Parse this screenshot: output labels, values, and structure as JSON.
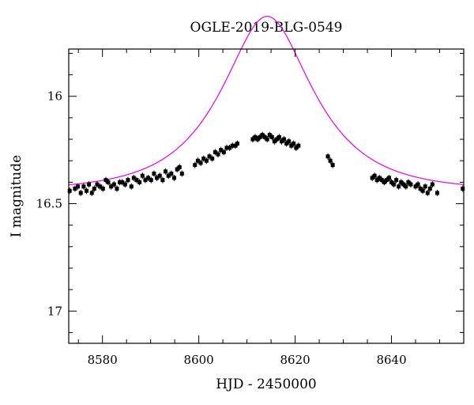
{
  "chart_data": {
    "type": "scatter",
    "title": "OGLE-2019-BLG-0549",
    "xlabel": "HJD - 2450000",
    "ylabel": "I magnitude",
    "xlim": [
      8573,
      8655
    ],
    "ylim": [
      17.15,
      15.78
    ],
    "y_inverted": true,
    "x_ticks_major": [
      8580,
      8600,
      8620,
      8640
    ],
    "x_tick_labels": [
      "8580",
      "8600",
      "8620",
      "8640"
    ],
    "y_ticks_major": [
      16,
      16.5,
      17
    ],
    "y_tick_labels": [
      "16",
      "16.5",
      "17"
    ],
    "grid": false,
    "model_color": "#e600e6",
    "point_color": "#000000",
    "model": {
      "t0": 8614.2,
      "u0": 0.52,
      "tE": 16.0,
      "I_base": 16.44
    },
    "series": [
      {
        "values": [
          [
            8573.2,
            16.44
          ],
          [
            8574.3,
            16.43
          ],
          [
            8574.9,
            16.42
          ],
          [
            8575.5,
            16.45
          ],
          [
            8576.1,
            16.42
          ],
          [
            8576.7,
            16.44
          ],
          [
            8577.2,
            16.41
          ],
          [
            8577.8,
            16.45
          ],
          [
            8578.3,
            16.43
          ],
          [
            8578.9,
            16.41
          ],
          [
            8579.5,
            16.42
          ],
          [
            8580.1,
            16.43
          ],
          [
            8580.7,
            16.39
          ],
          [
            8581.2,
            16.4
          ],
          [
            8581.8,
            16.42
          ],
          [
            8582.4,
            16.41
          ],
          [
            8583.0,
            16.43
          ],
          [
            8583.6,
            16.4
          ],
          [
            8584.1,
            16.4
          ],
          [
            8584.7,
            16.41
          ],
          [
            8585.3,
            16.39
          ],
          [
            8586.0,
            16.42
          ],
          [
            8586.5,
            16.38
          ],
          [
            8587.1,
            16.39
          ],
          [
            8587.7,
            16.4
          ],
          [
            8588.3,
            16.37
          ],
          [
            8588.9,
            16.39
          ],
          [
            8589.5,
            16.38
          ],
          [
            8590.1,
            16.39
          ],
          [
            8590.7,
            16.36
          ],
          [
            8591.3,
            16.38
          ],
          [
            8591.9,
            16.37
          ],
          [
            8592.5,
            16.39
          ],
          [
            8593.1,
            16.35
          ],
          [
            8593.7,
            16.37
          ],
          [
            8594.3,
            16.36
          ],
          [
            8594.9,
            16.38
          ],
          [
            8595.5,
            16.34
          ],
          [
            8596.0,
            16.33
          ],
          [
            8596.5,
            16.36
          ],
          [
            8599.2,
            16.32
          ],
          [
            8599.8,
            16.3
          ],
          [
            8600.4,
            16.31
          ],
          [
            8601.0,
            16.29
          ],
          [
            8601.6,
            16.3
          ],
          [
            8602.2,
            16.28
          ],
          [
            8602.8,
            16.29
          ],
          [
            8603.4,
            16.26
          ],
          [
            8604.0,
            16.27
          ],
          [
            8604.6,
            16.25
          ],
          [
            8605.2,
            16.26
          ],
          [
            8605.8,
            16.24
          ],
          [
            8606.4,
            16.24
          ],
          [
            8607.0,
            16.23
          ],
          [
            8607.6,
            16.23
          ],
          [
            8608.0,
            16.22
          ],
          [
            8611.2,
            16.2
          ],
          [
            8611.7,
            16.19
          ],
          [
            8612.2,
            16.2
          ],
          [
            8612.7,
            16.19
          ],
          [
            8613.2,
            16.18
          ],
          [
            8613.7,
            16.19
          ],
          [
            8614.2,
            16.2
          ],
          [
            8614.7,
            16.18
          ],
          [
            8615.2,
            16.19
          ],
          [
            8615.7,
            16.21
          ],
          [
            8616.2,
            16.2
          ],
          [
            8616.7,
            16.19
          ],
          [
            8617.2,
            16.21
          ],
          [
            8617.7,
            16.2
          ],
          [
            8618.2,
            16.22
          ],
          [
            8618.7,
            16.21
          ],
          [
            8619.2,
            16.23
          ],
          [
            8619.7,
            16.22
          ],
          [
            8620.2,
            16.24
          ],
          [
            8620.7,
            16.23
          ],
          [
            8626.8,
            16.28
          ],
          [
            8627.3,
            16.3
          ],
          [
            8627.8,
            16.32
          ],
          [
            8636.0,
            16.38
          ],
          [
            8636.5,
            16.37
          ],
          [
            8637.0,
            16.39
          ],
          [
            8637.5,
            16.38
          ],
          [
            8638.0,
            16.39
          ],
          [
            8638.5,
            16.4
          ],
          [
            8639.0,
            16.39
          ],
          [
            8639.5,
            16.38
          ],
          [
            8640.0,
            16.4
          ],
          [
            8640.5,
            16.41
          ],
          [
            8641.0,
            16.39
          ],
          [
            8641.5,
            16.42
          ],
          [
            8642.0,
            16.4
          ],
          [
            8642.5,
            16.41
          ],
          [
            8643.0,
            16.42
          ],
          [
            8643.5,
            16.4
          ],
          [
            8644.0,
            16.41
          ],
          [
            8645.0,
            16.42
          ],
          [
            8645.5,
            16.41
          ],
          [
            8646.0,
            16.43
          ],
          [
            8646.5,
            16.44
          ],
          [
            8647.0,
            16.42
          ],
          [
            8647.5,
            16.45
          ],
          [
            8648.0,
            16.43
          ],
          [
            8648.5,
            16.41
          ],
          [
            8649.5,
            16.45
          ],
          [
            8654.8,
            16.43
          ]
        ]
      }
    ]
  }
}
